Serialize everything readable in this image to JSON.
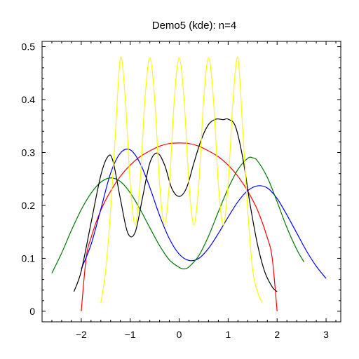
{
  "chart_data": {
    "type": "line",
    "title": "Demo5 (kde): n=4",
    "xlabel": "",
    "ylabel": "",
    "xlim": [
      -2.8,
      3.3
    ],
    "ylim": [
      -0.02,
      0.51
    ],
    "xticks": [
      -2,
      -1,
      0,
      1,
      2,
      3
    ],
    "xtick_labels": [
      "−2",
      "−1",
      "0",
      "1",
      "2",
      "3"
    ],
    "yticks": [
      0,
      0.1,
      0.2,
      0.3,
      0.4,
      0.5
    ],
    "ytick_labels": [
      "0",
      "0.1",
      "0.2",
      "0.3",
      "0.4",
      "0.5"
    ],
    "grid": false,
    "series": [
      {
        "color": "#ff0000",
        "x": [
          -2.0,
          -1.9,
          -1.8,
          -1.6,
          -1.4,
          -1.2,
          -1.0,
          -0.8,
          -0.6,
          -0.4,
          -0.2,
          0.0,
          0.2,
          0.4,
          0.6,
          0.8,
          1.0,
          1.2,
          1.4,
          1.6,
          1.8,
          1.9,
          2.0
        ],
        "y": [
          0.0,
          0.1,
          0.139,
          0.191,
          0.227,
          0.255,
          0.276,
          0.292,
          0.303,
          0.312,
          0.317,
          0.318,
          0.317,
          0.312,
          0.303,
          0.292,
          0.276,
          0.255,
          0.227,
          0.191,
          0.139,
          0.1,
          0.0
        ]
      },
      {
        "color": "#0000ff",
        "x": [
          -2.0,
          -1.8,
          -1.6,
          -1.4,
          -1.2,
          -1.0,
          -0.8,
          -0.6,
          -0.4,
          -0.2,
          0.0,
          0.2,
          0.4,
          0.6,
          0.8,
          1.0,
          1.2,
          1.4,
          1.6,
          1.8,
          2.0,
          2.2,
          2.4,
          2.6,
          2.8,
          3.0
        ],
        "y": [
          0.08,
          0.126,
          0.193,
          0.261,
          0.299,
          0.305,
          0.28,
          0.234,
          0.181,
          0.137,
          0.108,
          0.096,
          0.1,
          0.119,
          0.147,
          0.178,
          0.207,
          0.228,
          0.237,
          0.233,
          0.213,
          0.182,
          0.148,
          0.114,
          0.085,
          0.062
        ]
      },
      {
        "color": "#007700",
        "x": [
          -2.6,
          -2.4,
          -2.2,
          -2.0,
          -1.8,
          -1.6,
          -1.4,
          -1.2,
          -1.0,
          -0.8,
          -0.6,
          -0.4,
          -0.2,
          0.0,
          0.1,
          0.2,
          0.4,
          0.6,
          0.8,
          1.0,
          1.2,
          1.4,
          1.5,
          1.6,
          1.8,
          2.0,
          2.2,
          2.4,
          2.55
        ],
        "y": [
          0.072,
          0.11,
          0.153,
          0.192,
          0.223,
          0.244,
          0.252,
          0.245,
          0.224,
          0.193,
          0.158,
          0.124,
          0.097,
          0.083,
          0.08,
          0.084,
          0.105,
          0.142,
          0.188,
          0.232,
          0.268,
          0.289,
          0.29,
          0.284,
          0.253,
          0.207,
          0.158,
          0.117,
          0.093
        ]
      },
      {
        "color": "#000000",
        "x": [
          -2.15,
          -2.0,
          -1.8,
          -1.6,
          -1.45,
          -1.35,
          -1.2,
          -1.05,
          -0.9,
          -0.75,
          -0.6,
          -0.45,
          -0.3,
          -0.15,
          0.0,
          0.15,
          0.3,
          0.45,
          0.6,
          0.75,
          0.9,
          1.0,
          1.15,
          1.3,
          1.45,
          1.6,
          1.75,
          1.9,
          2.0
        ],
        "y": [
          0.037,
          0.076,
          0.167,
          0.257,
          0.293,
          0.283,
          0.212,
          0.148,
          0.149,
          0.214,
          0.28,
          0.299,
          0.277,
          0.232,
          0.217,
          0.233,
          0.28,
          0.324,
          0.353,
          0.363,
          0.362,
          0.363,
          0.349,
          0.289,
          0.201,
          0.126,
          0.074,
          0.046,
          0.037
        ]
      },
      {
        "color": "#ffff00",
        "x": [
          -1.6,
          -1.5,
          -1.4,
          -1.3,
          -1.2,
          -1.1,
          -1.0,
          -0.9,
          -0.8,
          -0.7,
          -0.6,
          -0.5,
          -0.4,
          -0.3,
          -0.2,
          -0.1,
          0.0,
          0.1,
          0.2,
          0.3,
          0.4,
          0.5,
          0.6,
          0.7,
          0.8,
          0.9,
          1.0,
          1.1,
          1.2,
          1.3,
          1.4,
          1.5,
          1.6,
          1.7
        ],
        "y": [
          0.015,
          0.079,
          0.19,
          0.339,
          0.479,
          0.4,
          0.241,
          0.163,
          0.241,
          0.4,
          0.479,
          0.4,
          0.241,
          0.163,
          0.241,
          0.4,
          0.479,
          0.4,
          0.241,
          0.163,
          0.241,
          0.4,
          0.479,
          0.4,
          0.241,
          0.163,
          0.241,
          0.4,
          0.479,
          0.339,
          0.19,
          0.079,
          0.037,
          0.015
        ]
      }
    ]
  }
}
